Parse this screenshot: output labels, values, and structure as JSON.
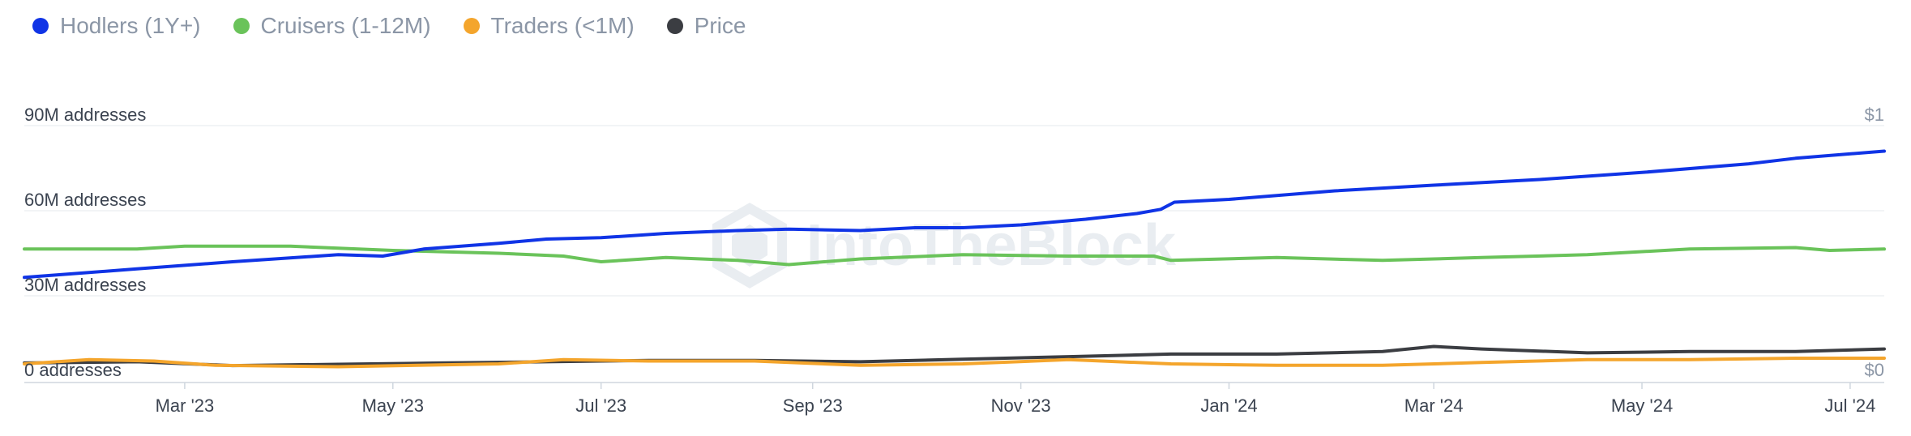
{
  "legend": [
    {
      "name": "Hodlers (1Y+)",
      "color": "#1034e6",
      "icon": "circle-dot"
    },
    {
      "name": "Cruisers (1-12M)",
      "color": "#6ac35a",
      "icon": "circle-dot"
    },
    {
      "name": "Traders (<1M)",
      "color": "#f4a52c",
      "icon": "circle-dot"
    },
    {
      "name": "Price",
      "color": "#3b3d42",
      "icon": "circle-dot"
    }
  ],
  "watermark": "IntoTheBlock",
  "colors": {
    "grid": "#eef0f3",
    "axis_text": "#3b4350",
    "right_axis_text": "#8b96a6",
    "baseline": "#cfd6de"
  },
  "chart_data": {
    "type": "line",
    "xlabel": "",
    "ylabel": "",
    "ylim": [
      0,
      90
    ],
    "y_ticks": [
      0,
      30,
      60,
      90
    ],
    "y_tick_labels": [
      "0 addresses",
      "30M addresses",
      "60M addresses",
      "90M addresses"
    ],
    "right_ylim": [
      0,
      1
    ],
    "right_tick_labels": [
      "$0",
      "$1"
    ],
    "x_ticks": [
      "2023-03-01",
      "2023-05-01",
      "2023-07-01",
      "2023-09-01",
      "2023-11-01",
      "2024-01-01",
      "2024-03-01",
      "2024-05-01",
      "2024-07-01"
    ],
    "x_tick_labels": [
      "Mar '23",
      "May '23",
      "Jul '23",
      "Sep '23",
      "Nov '23",
      "Jan '24",
      "Mar '24",
      "May '24",
      "Jul '24"
    ],
    "xlim": [
      "2023-01-13",
      "2024-07-11"
    ],
    "grid": true,
    "legend_position": "top-left",
    "series": [
      {
        "name": "Hodlers (1Y+)",
        "axis": "left",
        "points": [
          [
            "2023-01-13",
            36.5
          ],
          [
            "2023-02-15",
            39.5
          ],
          [
            "2023-03-15",
            42
          ],
          [
            "2023-04-15",
            44.5
          ],
          [
            "2023-04-28",
            44
          ],
          [
            "2023-05-10",
            46.5
          ],
          [
            "2023-06-01",
            48.5
          ],
          [
            "2023-06-15",
            50
          ],
          [
            "2023-07-01",
            50.5
          ],
          [
            "2023-07-20",
            52
          ],
          [
            "2023-08-10",
            53
          ],
          [
            "2023-08-25",
            53.5
          ],
          [
            "2023-09-15",
            53
          ],
          [
            "2023-10-01",
            54
          ],
          [
            "2023-10-15",
            54
          ],
          [
            "2023-11-01",
            55
          ],
          [
            "2023-11-20",
            57
          ],
          [
            "2023-12-05",
            59
          ],
          [
            "2023-12-12",
            60.5
          ],
          [
            "2023-12-16",
            63
          ],
          [
            "2024-01-01",
            64
          ],
          [
            "2024-02-01",
            67
          ],
          [
            "2024-03-01",
            69
          ],
          [
            "2024-04-01",
            71
          ],
          [
            "2024-05-01",
            73.5
          ],
          [
            "2024-06-01",
            76.5
          ],
          [
            "2024-06-15",
            78.5
          ],
          [
            "2024-07-11",
            81
          ]
        ]
      },
      {
        "name": "Cruisers (1-12M)",
        "axis": "left",
        "points": [
          [
            "2023-01-13",
            46.5
          ],
          [
            "2023-02-15",
            46.5
          ],
          [
            "2023-03-01",
            47.5
          ],
          [
            "2023-04-01",
            47.5
          ],
          [
            "2023-05-01",
            46
          ],
          [
            "2023-06-01",
            45
          ],
          [
            "2023-06-20",
            44
          ],
          [
            "2023-07-01",
            42
          ],
          [
            "2023-07-20",
            43.5
          ],
          [
            "2023-08-10",
            42.5
          ],
          [
            "2023-08-25",
            41
          ],
          [
            "2023-09-15",
            43
          ],
          [
            "2023-10-15",
            44.5
          ],
          [
            "2023-11-15",
            44
          ],
          [
            "2023-12-10",
            44
          ],
          [
            "2023-12-15",
            42.5
          ],
          [
            "2024-01-15",
            43.5
          ],
          [
            "2024-02-15",
            42.5
          ],
          [
            "2024-03-15",
            43.5
          ],
          [
            "2024-04-15",
            44.5
          ],
          [
            "2024-05-15",
            46.5
          ],
          [
            "2024-06-15",
            47
          ],
          [
            "2024-06-25",
            46
          ],
          [
            "2024-07-11",
            46.5
          ]
        ]
      },
      {
        "name": "Traders (<1M)",
        "axis": "left",
        "points": [
          [
            "2023-01-13",
            6
          ],
          [
            "2023-02-01",
            7.5
          ],
          [
            "2023-02-20",
            7
          ],
          [
            "2023-03-10",
            5.5
          ],
          [
            "2023-04-15",
            5
          ],
          [
            "2023-06-01",
            6
          ],
          [
            "2023-06-20",
            7.5
          ],
          [
            "2023-07-15",
            7
          ],
          [
            "2023-08-15",
            7
          ],
          [
            "2023-09-15",
            5.5
          ],
          [
            "2023-10-15",
            6
          ],
          [
            "2023-11-15",
            7.5
          ],
          [
            "2023-12-15",
            6
          ],
          [
            "2024-01-15",
            5.5
          ],
          [
            "2024-02-15",
            5.5
          ],
          [
            "2024-03-15",
            6.5
          ],
          [
            "2024-04-15",
            7.5
          ],
          [
            "2024-05-15",
            7.5
          ],
          [
            "2024-06-15",
            8
          ],
          [
            "2024-07-11",
            8
          ]
        ]
      },
      {
        "name": "Price",
        "axis": "right",
        "points": [
          [
            "2023-01-13",
            0.07
          ],
          [
            "2023-02-15",
            0.075
          ],
          [
            "2023-03-15",
            0.06
          ],
          [
            "2023-04-15",
            0.065
          ],
          [
            "2023-05-15",
            0.07
          ],
          [
            "2023-06-15",
            0.075
          ],
          [
            "2023-07-15",
            0.08
          ],
          [
            "2023-08-15",
            0.08
          ],
          [
            "2023-09-15",
            0.075
          ],
          [
            "2023-10-15",
            0.085
          ],
          [
            "2023-11-15",
            0.095
          ],
          [
            "2023-12-15",
            0.105
          ],
          [
            "2024-01-15",
            0.105
          ],
          [
            "2024-02-15",
            0.115
          ],
          [
            "2024-03-01",
            0.135
          ],
          [
            "2024-03-15",
            0.125
          ],
          [
            "2024-04-15",
            0.11
          ],
          [
            "2024-05-15",
            0.115
          ],
          [
            "2024-06-15",
            0.115
          ],
          [
            "2024-07-11",
            0.125
          ]
        ]
      }
    ]
  }
}
